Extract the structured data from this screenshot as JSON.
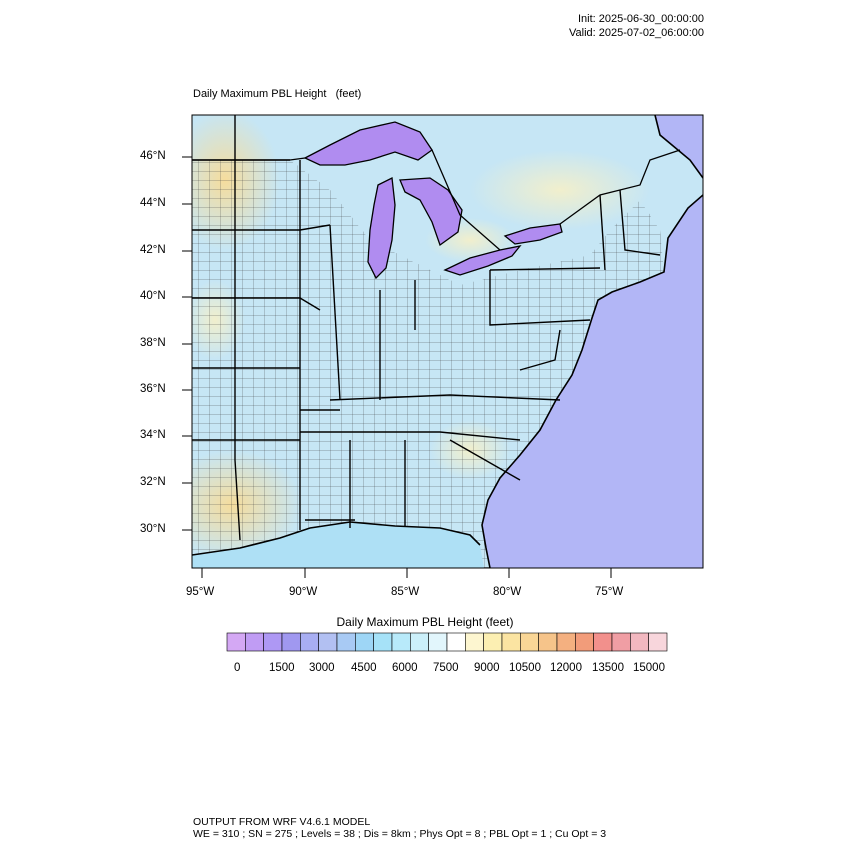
{
  "header": {
    "init": "Init: 2025-06-30_00:00:00",
    "valid": "Valid: 2025-07-02_06:00:00"
  },
  "map": {
    "title": "Daily Maximum PBL Height   (feet)",
    "lat_labels": [
      "46°N",
      "44°N",
      "42°N",
      "40°N",
      "38°N",
      "36°N",
      "34°N",
      "32°N",
      "30°N"
    ],
    "lon_labels": [
      "95°W",
      "90°W",
      "85°W",
      "80°W",
      "75°W"
    ],
    "colors": {
      "land_base": "#c8e8f6",
      "ocean": "#b4b4f8",
      "lakes": "#b08cf0",
      "warm_region": "#f6e2a6",
      "borders": "#000000"
    }
  },
  "colorbar": {
    "title": "Daily Maximum PBL Height  (feet)",
    "colors": [
      "#d4a8f4",
      "#c09cf4",
      "#ae98f4",
      "#a098f0",
      "#a8aef2",
      "#b2c0f2",
      "#a8caf4",
      "#9ed6f6",
      "#a6e2f8",
      "#b8eafa",
      "#ccf0fa",
      "#e2f6fc",
      "#ffffff",
      "#fdf6d0",
      "#fcefb2",
      "#fbe4a2",
      "#f9d696",
      "#f6c48a",
      "#f4b080",
      "#f29c7a",
      "#f2908c",
      "#f09ea4",
      "#f2b8c0",
      "#f8d6dc"
    ],
    "tick_labels": [
      "0",
      "1500",
      "3000",
      "4500",
      "6000",
      "7500",
      "9000",
      "10500",
      "12000",
      "13500",
      "15000"
    ]
  },
  "footer": {
    "line1": "OUTPUT FROM WRF V4.6.1 MODEL",
    "line2": "WE = 310 ; SN = 275 ; Levels = 38 ; Dis = 8km ; Phys Opt = 8 ; PBL Opt = 1 ; Cu Opt = 3"
  }
}
